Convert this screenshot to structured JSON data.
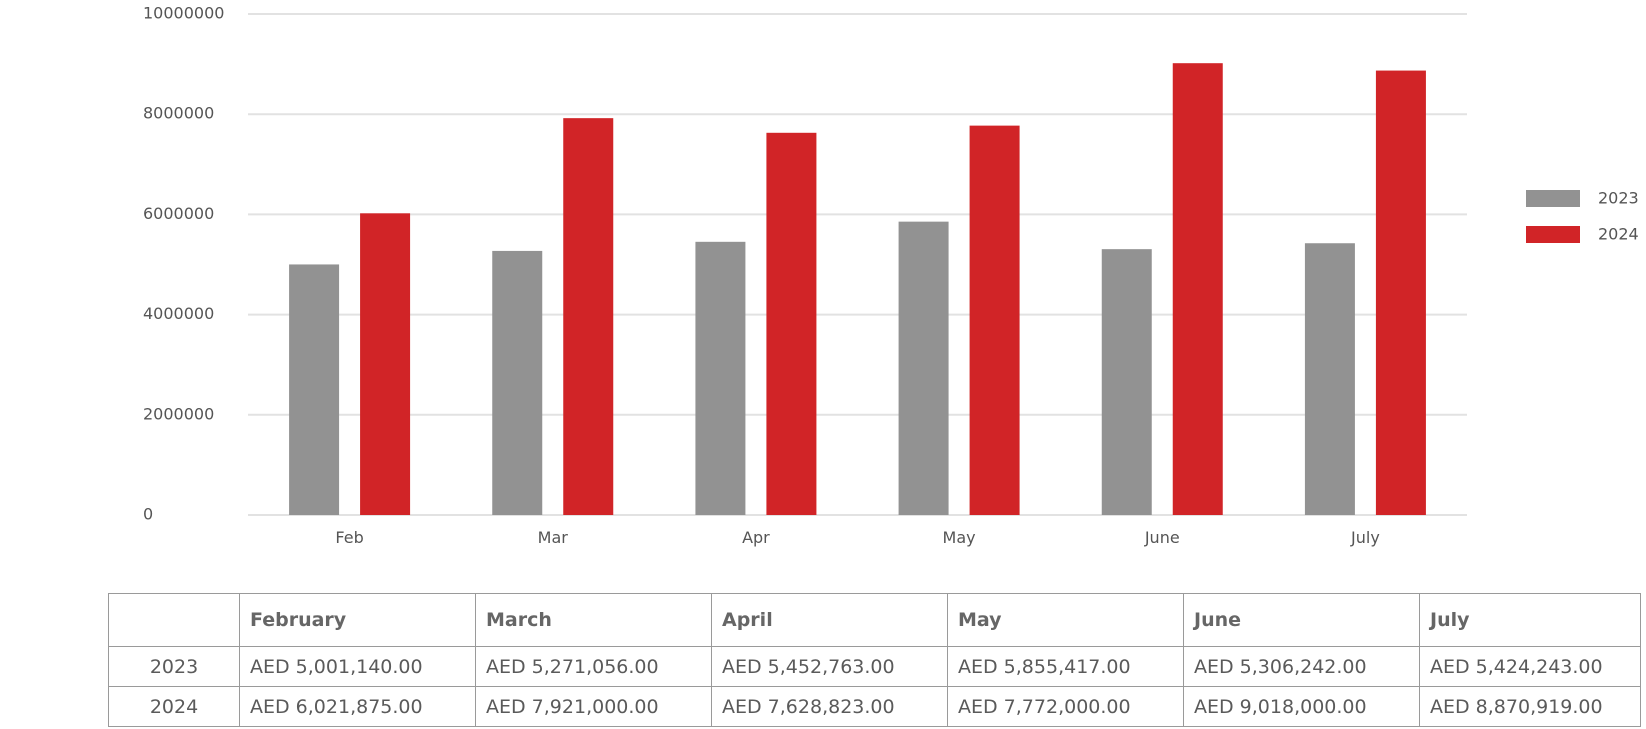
{
  "chart_data": {
    "type": "bar",
    "categories": [
      "Feb",
      "Mar",
      "Apr",
      "May",
      "June",
      "July"
    ],
    "series": [
      {
        "name": "2023",
        "color": "#929292",
        "values": [
          5001140,
          5271056,
          5452763,
          5855417,
          5306242,
          5424243
        ]
      },
      {
        "name": "2024",
        "color": "#d12427",
        "values": [
          6021875,
          7921000,
          7628823,
          7772000,
          9018000,
          8870919
        ]
      }
    ],
    "yticks": [
      "0",
      "2000000",
      "4000000",
      "6000000",
      "8000000",
      "10000000"
    ],
    "ylim": [
      0,
      10000000
    ],
    "grid": true,
    "legend_position": "right"
  },
  "table": {
    "headers": [
      "",
      "February",
      "March",
      "April",
      "May",
      "June",
      "July"
    ],
    "rows": [
      {
        "label": "2023",
        "cells": [
          "AED 5,001,140.00",
          "AED 5,271,056.00",
          "AED 5,452,763.00",
          "AED 5,855,417.00",
          "AED 5,306,242.00",
          "AED 5,424,243.00"
        ]
      },
      {
        "label": "2024",
        "cells": [
          "AED 6,021,875.00",
          "AED 7,921,000.00",
          "AED 7,628,823.00",
          "AED 7,772,000.00",
          "AED 9,018,000.00",
          "AED 8,870,919.00"
        ]
      }
    ]
  }
}
